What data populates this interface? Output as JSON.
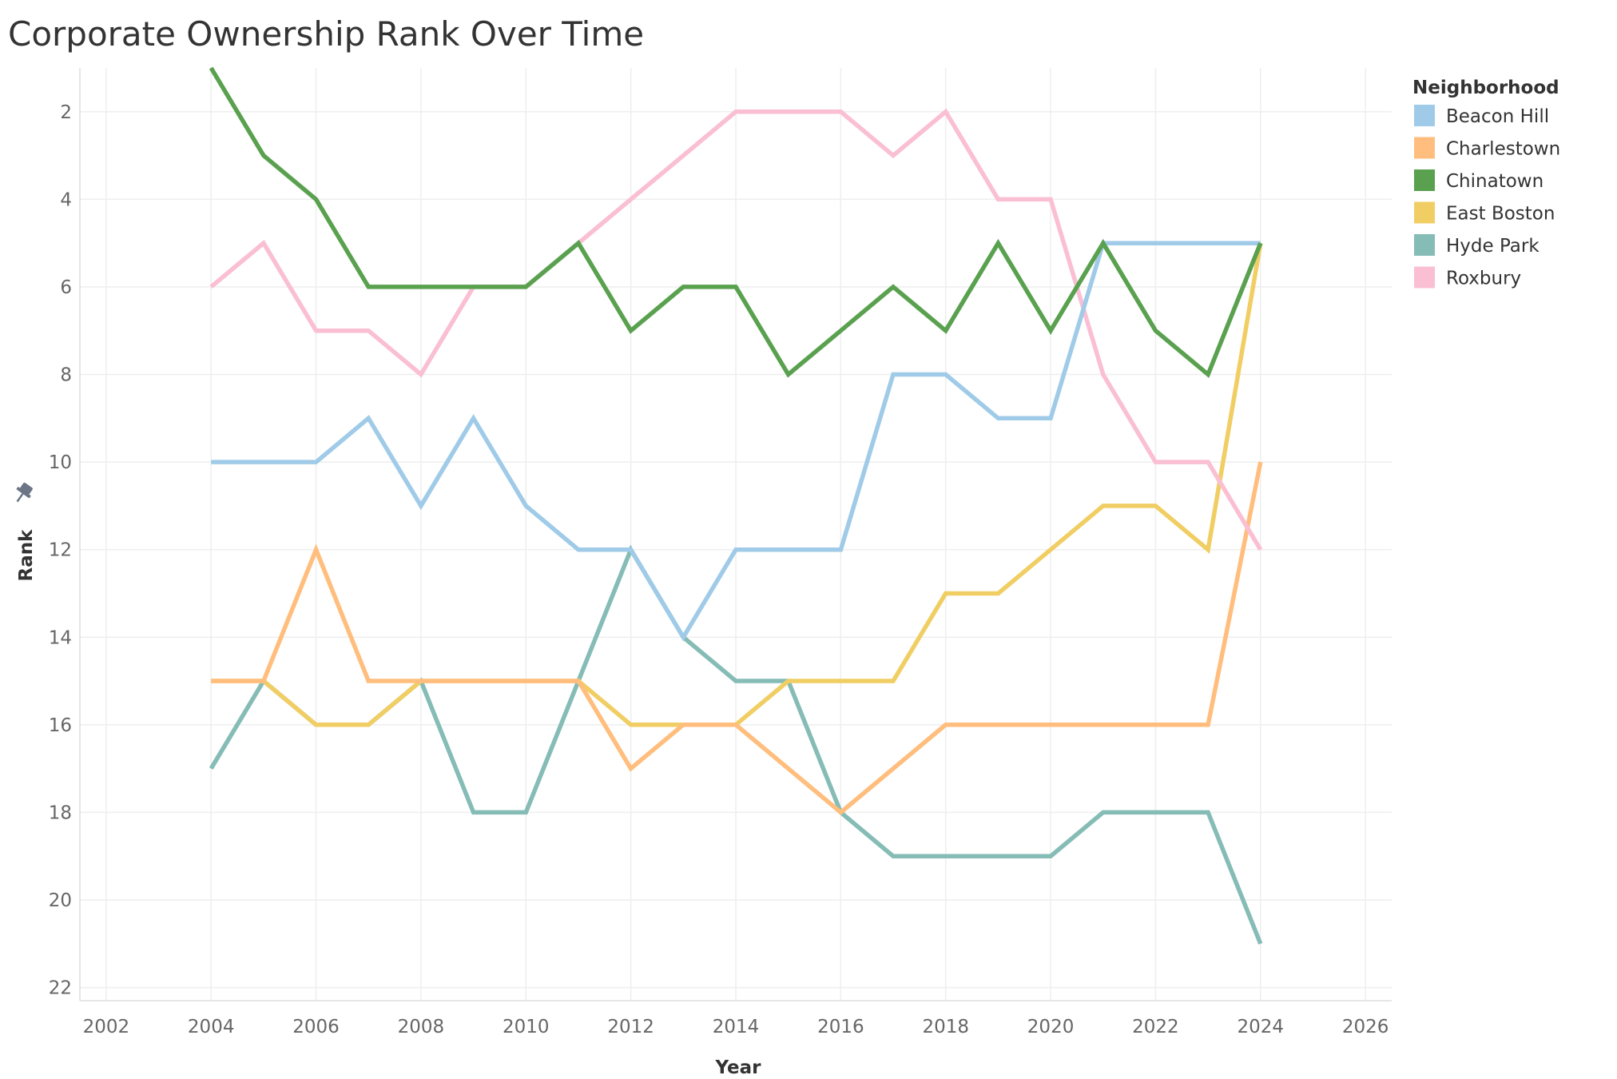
{
  "chart_data": {
    "type": "line",
    "title": "Corporate Ownership Rank Over Time",
    "xlabel": "Year",
    "ylabel": "Rank",
    "xlim": [
      2001.5,
      2026.5
    ],
    "ylim": [
      22.3,
      1
    ],
    "y_reversed": true,
    "x_ticks": [
      2002,
      2004,
      2006,
      2008,
      2010,
      2012,
      2014,
      2016,
      2018,
      2020,
      2022,
      2024,
      2026
    ],
    "y_ticks": [
      2,
      4,
      6,
      8,
      10,
      12,
      14,
      16,
      18,
      20,
      22
    ],
    "grid": true,
    "legend_title": "Neighborhood",
    "legend_position": "top-right",
    "x": [
      2004,
      2005,
      2006,
      2007,
      2008,
      2009,
      2010,
      2011,
      2012,
      2013,
      2014,
      2015,
      2016,
      2017,
      2018,
      2019,
      2020,
      2021,
      2022,
      2023,
      2024
    ],
    "series": [
      {
        "name": "Beacon Hill",
        "color": "#a0cbe8",
        "values": [
          10,
          10,
          10,
          9,
          11,
          9,
          11,
          12,
          12,
          14,
          12,
          12,
          12,
          8,
          8,
          9,
          9,
          5,
          5,
          5,
          5
        ]
      },
      {
        "name": "Charlestown",
        "color": "#ffbe7d",
        "values": [
          15,
          15,
          12,
          15,
          15,
          15,
          15,
          15,
          17,
          16,
          16,
          17,
          18,
          17,
          16,
          16,
          16,
          16,
          16,
          16,
          10
        ]
      },
      {
        "name": "Chinatown",
        "color": "#59a14f",
        "values": [
          1,
          3,
          4,
          6,
          6,
          6,
          6,
          5,
          7,
          6,
          6,
          8,
          7,
          6,
          7,
          5,
          7,
          5,
          7,
          8,
          5
        ]
      },
      {
        "name": "East Boston",
        "color": "#f1ce63",
        "values": [
          15,
          15,
          16,
          16,
          15,
          15,
          15,
          15,
          16,
          16,
          16,
          15,
          15,
          15,
          13,
          13,
          12,
          11,
          11,
          12,
          5
        ]
      },
      {
        "name": "Hyde Park",
        "color": "#86bcb6",
        "values": [
          17,
          15,
          16,
          16,
          15,
          18,
          18,
          15,
          12,
          14,
          15,
          15,
          18,
          19,
          19,
          19,
          19,
          18,
          18,
          18,
          21
        ]
      },
      {
        "name": "Roxbury",
        "color": "#fabfd2",
        "values": [
          6,
          5,
          7,
          7,
          8,
          6,
          6,
          5,
          4,
          3,
          2,
          2,
          2,
          3,
          2,
          4,
          4,
          8,
          10,
          10,
          12
        ]
      }
    ],
    "draw_order": [
      "Hyde Park",
      "East Boston",
      "Charlestown",
      "Roxbury",
      "Beacon Hill",
      "Chinatown"
    ]
  }
}
